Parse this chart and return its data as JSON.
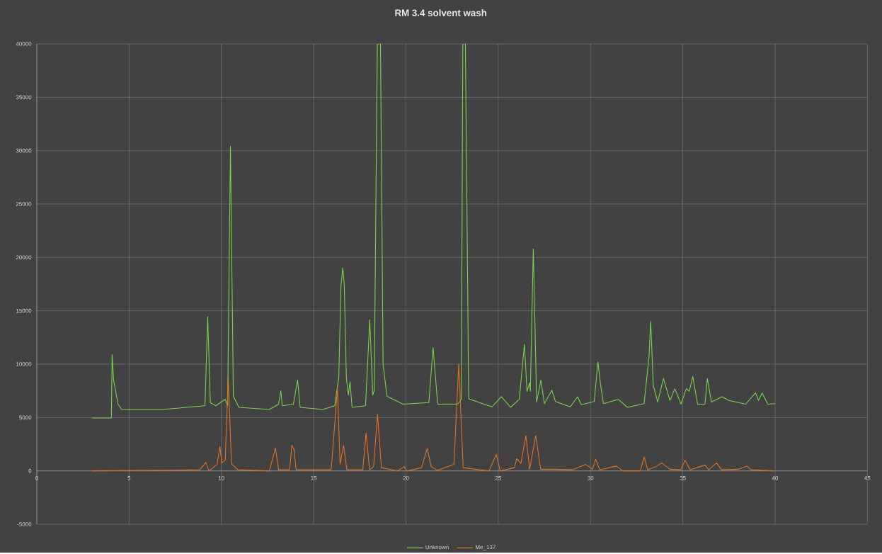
{
  "chart_data": {
    "type": "line",
    "title": "RM 3.4 solvent wash",
    "series": [
      {
        "name": "Unknown",
        "color": "#7bd64a",
        "x": [
          3.0,
          4.04,
          4.08,
          4.16,
          4.4,
          4.6,
          6.78,
          9.11,
          9.26,
          9.4,
          9.7,
          10.2,
          10.34,
          10.49,
          10.65,
          10.95,
          12.6,
          13.1,
          13.22,
          13.3,
          13.9,
          14.13,
          14.27,
          15.5,
          16.14,
          16.36,
          16.48,
          16.58,
          16.66,
          16.77,
          16.88,
          16.97,
          17.08,
          17.81,
          18.04,
          18.2,
          18.28,
          18.45,
          18.62,
          18.76,
          18.97,
          19.84,
          21.24,
          21.47,
          21.72,
          22.8,
          23.0,
          23.08,
          23.22,
          23.4,
          24.66,
          25.17,
          25.67,
          26.14,
          26.42,
          26.56,
          26.7,
          26.74,
          26.9,
          27.08,
          27.31,
          27.5,
          27.9,
          28.1,
          28.9,
          29.3,
          29.5,
          30.2,
          30.4,
          30.55,
          30.7,
          31.5,
          32.0,
          32.9,
          33.17,
          33.26,
          33.4,
          33.64,
          33.95,
          34.3,
          34.57,
          34.9,
          35.19,
          35.35,
          35.54,
          35.8,
          36.2,
          36.33,
          36.55,
          37.11,
          37.5,
          38.4,
          38.94,
          39.1,
          39.3,
          39.6,
          40.0
        ],
        "values": [
          4950,
          4950,
          10900,
          8500,
          6250,
          5750,
          5750,
          6100,
          14450,
          6400,
          6100,
          6700,
          6100,
          30400,
          7000,
          5950,
          5750,
          6250,
          7500,
          6100,
          6250,
          8500,
          5950,
          5750,
          6100,
          8750,
          17400,
          19000,
          17400,
          8750,
          7100,
          8350,
          5950,
          6100,
          14150,
          7100,
          7500,
          40000,
          40000,
          10000,
          7000,
          6250,
          6400,
          11550,
          6250,
          6250,
          6700,
          40000,
          40000,
          6750,
          6000,
          6950,
          5950,
          6700,
          11850,
          7450,
          8250,
          7450,
          20800,
          6450,
          8500,
          6300,
          7550,
          6500,
          6000,
          6950,
          6200,
          6500,
          10200,
          8000,
          6300,
          6700,
          5950,
          6300,
          10700,
          14000,
          8000,
          6450,
          8650,
          6600,
          7700,
          6250,
          7700,
          7450,
          8850,
          6250,
          6250,
          8650,
          6450,
          6950,
          6600,
          6250,
          7300,
          6600,
          7300,
          6250,
          6300
        ]
      },
      {
        "name": "Me_137",
        "color": "#e8731c",
        "x": [
          3.0,
          8.83,
          9.16,
          9.33,
          9.77,
          9.92,
          10.02,
          10.21,
          10.37,
          10.55,
          10.9,
          12.6,
          12.93,
          13.1,
          13.7,
          13.82,
          13.94,
          14.05,
          15.95,
          16.29,
          16.43,
          16.62,
          16.8,
          17.66,
          17.84,
          18.03,
          18.25,
          18.46,
          18.67,
          19.55,
          19.91,
          20.05,
          20.85,
          21.15,
          21.37,
          21.69,
          22.6,
          22.86,
          23.1,
          24.5,
          24.9,
          25.1,
          25.88,
          26.0,
          26.23,
          26.5,
          26.7,
          27.03,
          27.3,
          28.0,
          29.0,
          29.74,
          30.1,
          30.28,
          30.5,
          31.4,
          31.75,
          32.7,
          32.9,
          33.1,
          33.6,
          33.85,
          34.3,
          34.9,
          35.12,
          35.4,
          36.2,
          36.4,
          36.83,
          37.1,
          38.0,
          38.47,
          38.7,
          39.9
        ],
        "values": [
          0,
          100,
          800,
          0,
          600,
          2300,
          750,
          1000,
          8700,
          650,
          100,
          0,
          2150,
          100,
          100,
          2400,
          2000,
          100,
          100,
          7750,
          650,
          2400,
          100,
          100,
          3550,
          100,
          400,
          5300,
          300,
          0,
          400,
          0,
          300,
          2100,
          400,
          50,
          600,
          10000,
          300,
          0,
          1550,
          0,
          300,
          1150,
          700,
          3300,
          150,
          3300,
          150,
          150,
          100,
          600,
          150,
          1100,
          100,
          450,
          0,
          0,
          1300,
          100,
          450,
          750,
          150,
          100,
          1000,
          100,
          550,
          100,
          750,
          100,
          150,
          450,
          100,
          0
        ]
      }
    ],
    "xlim": [
      0,
      45
    ],
    "ylim": [
      -5000,
      40000
    ],
    "xticks": [
      0,
      5,
      10,
      15,
      20,
      25,
      30,
      35,
      40,
      45
    ],
    "yticks": [
      -5000,
      0,
      5000,
      10000,
      15000,
      20000,
      25000,
      30000,
      35000,
      40000
    ],
    "grid": true,
    "legend": "bottom",
    "marker": "none"
  }
}
